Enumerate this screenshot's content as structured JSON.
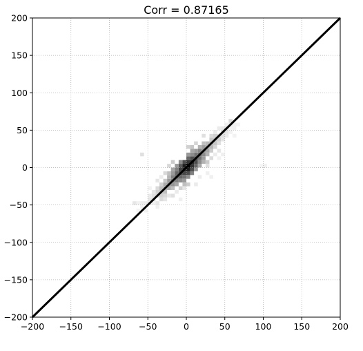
{
  "chart_data": {
    "type": "heatmap",
    "title": "Corr = 0.87165",
    "xlabel": "",
    "ylabel": "",
    "xlim": [
      -200,
      200
    ],
    "ylim": [
      -200,
      200
    ],
    "xticks": [
      -200,
      -150,
      -100,
      -50,
      0,
      50,
      100,
      150,
      200
    ],
    "yticks": [
      -200,
      -150,
      -100,
      -50,
      0,
      50,
      100,
      150,
      200
    ],
    "grid": true,
    "grid_style": "dotted",
    "reference_line": {
      "from": [
        -200,
        -200
      ],
      "to": [
        200,
        200
      ],
      "color": "#000000"
    },
    "colormap": "greys",
    "bin_size": 5,
    "cells": [
      [
        0,
        0,
        1.0
      ],
      [
        -5,
        0,
        0.88
      ],
      [
        0,
        -5,
        0.9
      ],
      [
        -5,
        -5,
        0.85
      ],
      [
        5,
        5,
        0.85
      ],
      [
        5,
        0,
        0.8
      ],
      [
        0,
        5,
        0.8
      ],
      [
        -10,
        -5,
        0.75
      ],
      [
        -5,
        -10,
        0.72
      ],
      [
        10,
        5,
        0.7
      ],
      [
        5,
        10,
        0.7
      ],
      [
        -10,
        -10,
        0.72
      ],
      [
        10,
        10,
        0.7
      ],
      [
        -15,
        -10,
        0.6
      ],
      [
        -10,
        -15,
        0.6
      ],
      [
        15,
        10,
        0.55
      ],
      [
        10,
        15,
        0.55
      ],
      [
        -15,
        -15,
        0.62
      ],
      [
        15,
        15,
        0.58
      ],
      [
        -20,
        -15,
        0.5
      ],
      [
        -15,
        -20,
        0.5
      ],
      [
        20,
        15,
        0.45
      ],
      [
        15,
        20,
        0.48
      ],
      [
        -20,
        -20,
        0.5
      ],
      [
        20,
        20,
        0.42
      ],
      [
        -25,
        -20,
        0.4
      ],
      [
        -20,
        -25,
        0.42
      ],
      [
        25,
        20,
        0.35
      ],
      [
        20,
        25,
        0.38
      ],
      [
        -25,
        -25,
        0.4
      ],
      [
        25,
        25,
        0.3
      ],
      [
        -30,
        -25,
        0.33
      ],
      [
        -25,
        -30,
        0.33
      ],
      [
        30,
        25,
        0.28
      ],
      [
        25,
        30,
        0.28
      ],
      [
        -30,
        -30,
        0.3
      ],
      [
        30,
        30,
        0.25
      ],
      [
        -35,
        -30,
        0.25
      ],
      [
        -30,
        -35,
        0.25
      ],
      [
        35,
        30,
        0.22
      ],
      [
        30,
        35,
        0.22
      ],
      [
        -35,
        -35,
        0.22
      ],
      [
        35,
        35,
        0.2
      ],
      [
        -40,
        -35,
        0.18
      ],
      [
        -35,
        -40,
        0.18
      ],
      [
        40,
        35,
        0.18
      ],
      [
        35,
        40,
        0.18
      ],
      [
        -40,
        -40,
        0.15
      ],
      [
        40,
        40,
        0.15
      ],
      [
        -45,
        -40,
        0.12
      ],
      [
        -45,
        -45,
        0.12
      ],
      [
        45,
        40,
        0.12
      ],
      [
        45,
        45,
        0.12
      ],
      [
        -50,
        -45,
        0.1
      ],
      [
        50,
        45,
        0.1
      ],
      [
        -55,
        -50,
        0.08
      ],
      [
        50,
        50,
        0.1
      ],
      [
        55,
        55,
        0.08
      ],
      [
        -60,
        -50,
        0.08
      ],
      [
        -50,
        -50,
        0.08
      ],
      [
        55,
        60,
        0.15
      ],
      [
        -5,
        5,
        0.7
      ],
      [
        5,
        -5,
        0.7
      ],
      [
        -10,
        0,
        0.65
      ],
      [
        0,
        -10,
        0.7
      ],
      [
        10,
        0,
        0.6
      ],
      [
        0,
        10,
        0.6
      ],
      [
        -15,
        -5,
        0.5
      ],
      [
        -5,
        -15,
        0.55
      ],
      [
        15,
        5,
        0.45
      ],
      [
        5,
        15,
        0.45
      ],
      [
        -20,
        -10,
        0.4
      ],
      [
        -10,
        -20,
        0.45
      ],
      [
        20,
        10,
        0.38
      ],
      [
        10,
        20,
        0.4
      ],
      [
        -25,
        -15,
        0.3
      ],
      [
        -15,
        -25,
        0.35
      ],
      [
        25,
        15,
        0.3
      ],
      [
        15,
        25,
        0.3
      ],
      [
        -10,
        5,
        0.45
      ],
      [
        5,
        -10,
        0.5
      ],
      [
        -20,
        -5,
        0.35
      ],
      [
        -5,
        -20,
        0.4
      ],
      [
        20,
        5,
        0.3
      ],
      [
        5,
        20,
        0.35
      ],
      [
        -15,
        0,
        0.4
      ],
      [
        0,
        -15,
        0.45
      ],
      [
        15,
        0,
        0.35
      ],
      [
        0,
        15,
        0.4
      ],
      [
        -25,
        -10,
        0.25
      ],
      [
        10,
        -5,
        0.4
      ],
      [
        -30,
        -20,
        0.22
      ],
      [
        -20,
        -30,
        0.25
      ],
      [
        30,
        20,
        0.2
      ],
      [
        20,
        30,
        0.25
      ],
      [
        -35,
        -25,
        0.18
      ],
      [
        35,
        25,
        0.16
      ],
      [
        -40,
        -30,
        0.14
      ],
      [
        -30,
        -40,
        0.15
      ],
      [
        40,
        30,
        0.12
      ],
      [
        30,
        40,
        0.14
      ],
      [
        -45,
        -35,
        0.1
      ],
      [
        45,
        35,
        0.1
      ],
      [
        -20,
        5,
        0.2
      ],
      [
        -5,
        -25,
        0.25
      ],
      [
        25,
        5,
        0.2
      ],
      [
        5,
        25,
        0.22
      ],
      [
        -30,
        -10,
        0.15
      ],
      [
        -10,
        -30,
        0.18
      ],
      [
        30,
        10,
        0.14
      ],
      [
        10,
        30,
        0.16
      ],
      [
        -25,
        0,
        0.15
      ],
      [
        0,
        -25,
        0.2
      ],
      [
        25,
        0,
        0.12
      ],
      [
        0,
        25,
        0.18
      ],
      [
        -40,
        -20,
        0.1
      ],
      [
        -20,
        -40,
        0.12
      ],
      [
        40,
        20,
        0.1
      ],
      [
        20,
        40,
        0.12
      ],
      [
        -35,
        -45,
        0.14
      ],
      [
        45,
        50,
        0.1
      ],
      [
        -50,
        -40,
        0.08
      ],
      [
        -40,
        -50,
        0.1
      ],
      [
        50,
        40,
        0.08
      ],
      [
        40,
        50,
        0.08
      ],
      [
        -45,
        -50,
        0.06
      ],
      [
        50,
        55,
        0.06
      ],
      [
        -60,
        -55,
        0.06
      ],
      [
        -55,
        -60,
        0.05
      ],
      [
        60,
        50,
        0.06
      ],
      [
        55,
        50,
        0.05
      ],
      [
        -65,
        -60,
        0.04
      ],
      [
        -70,
        -50,
        0.1
      ],
      [
        -60,
        15,
        0.12
      ],
      [
        10,
        -25,
        0.08
      ],
      [
        -15,
        -35,
        0.08
      ],
      [
        30,
        -15,
        0.06
      ],
      [
        -30,
        -45,
        0.1
      ],
      [
        45,
        15,
        0.06
      ],
      [
        60,
        55,
        0.06
      ],
      [
        65,
        55,
        0.05
      ],
      [
        -65,
        -50,
        0.05
      ],
      [
        100,
        0,
        0.05
      ],
      [
        95,
        0,
        0.04
      ],
      [
        -10,
        -45,
        0.06
      ],
      [
        -5,
        -30,
        0.1
      ],
      [
        15,
        -15,
        0.07
      ],
      [
        -35,
        -15,
        0.08
      ],
      [
        25,
        -10,
        0.06
      ],
      [
        35,
        15,
        0.08
      ],
      [
        -50,
        -30,
        0.05
      ],
      [
        40,
        10,
        0.05
      ],
      [
        -40,
        -55,
        0.06
      ],
      [
        55,
        45,
        0.05
      ],
      [
        60,
        40,
        0.05
      ],
      [
        35,
        45,
        0.08
      ],
      [
        -25,
        -40,
        0.1
      ]
    ]
  }
}
